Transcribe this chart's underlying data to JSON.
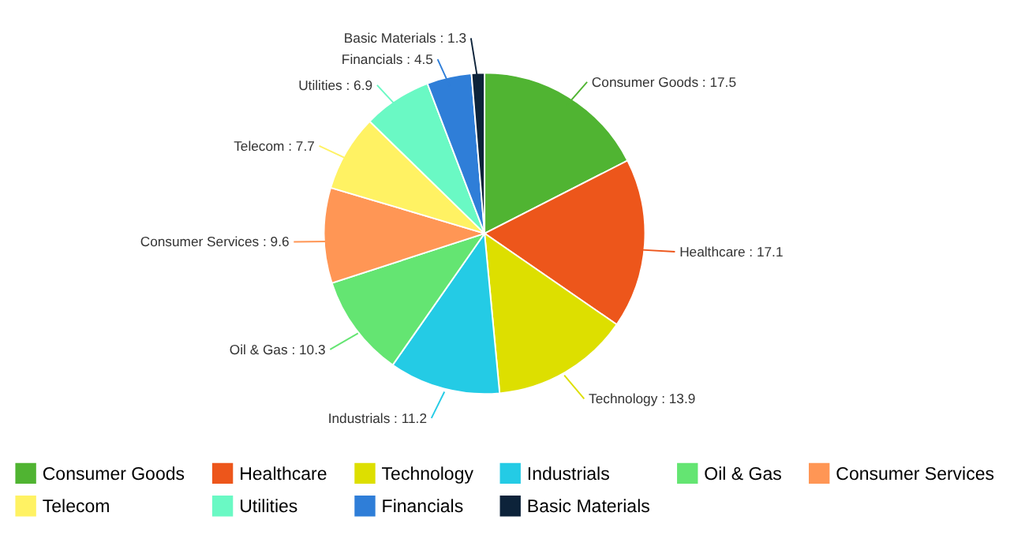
{
  "chart_data": {
    "type": "pie",
    "categories": [
      "Consumer Goods",
      "Healthcare",
      "Technology",
      "Industrials",
      "Oil & Gas",
      "Consumer Services",
      "Telecom",
      "Utilities",
      "Financials",
      "Basic Materials"
    ],
    "values": [
      17.5,
      17.1,
      13.9,
      11.2,
      10.3,
      9.6,
      7.7,
      6.9,
      4.5,
      1.3
    ],
    "value_labels": [
      "Consumer Goods : 17.5",
      "Healthcare : 17.1",
      "Technology : 13.9",
      "Industrials : 11.2",
      "Oil & Gas : 10.3",
      "Consumer Services : 9.6",
      "Telecom : 7.7",
      "Utilities : 6.9",
      "Financials : 4.5",
      "Basic Materials : 1.3"
    ],
    "colors": [
      "#50b432",
      "#ed561b",
      "#dddf00",
      "#24cbe5",
      "#64e572",
      "#ff9655",
      "#fff263",
      "#6af9c4",
      "#2f7ed8",
      "#0d233a"
    ],
    "legend": "bottom"
  }
}
